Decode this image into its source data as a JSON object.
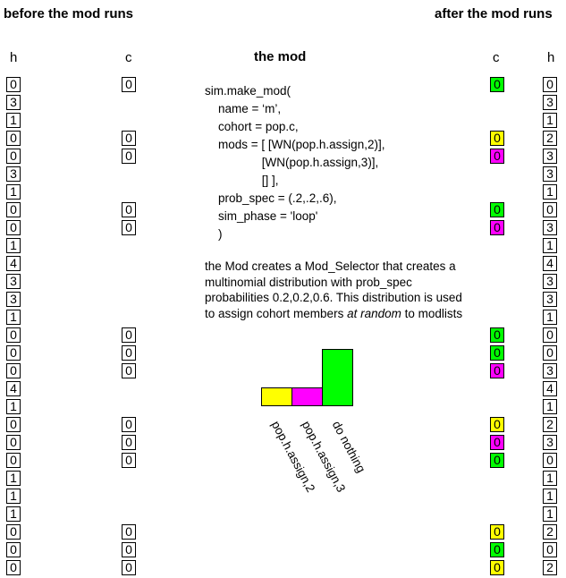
{
  "headers": {
    "before": "before the mod runs",
    "after": "after the mod runs"
  },
  "columns": {
    "h": "h",
    "c": "c",
    "mod_title": "the mod"
  },
  "before_h": [
    "0",
    "3",
    "1",
    "0",
    "0",
    "3",
    "1",
    "0",
    "0",
    "1",
    "4",
    "3",
    "3",
    "1",
    "0",
    "0",
    "0",
    "4",
    "1",
    "0",
    "0",
    "0",
    "1",
    "1",
    "1",
    "0",
    "0",
    "0"
  ],
  "before_c": [
    "0",
    "",
    "",
    "0",
    "0",
    "",
    "",
    "0",
    "0",
    "",
    "",
    "",
    "",
    "",
    "0",
    "0",
    "0",
    "",
    "",
    "0",
    "0",
    "0",
    "",
    "",
    "",
    "0",
    "0",
    "0"
  ],
  "after_c": [
    "0",
    "",
    "",
    "0",
    "0",
    "",
    "",
    "0",
    "0",
    "",
    "",
    "",
    "",
    "",
    "0",
    "0",
    "0",
    "",
    "",
    "0",
    "0",
    "0",
    "",
    "",
    "",
    "0",
    "0",
    "0"
  ],
  "after_c_colors": [
    "#00ff00",
    "",
    "",
    "#ffff00",
    "#ff00ff",
    "",
    "",
    "#00ff00",
    "#ff00ff",
    "",
    "",
    "",
    "",
    "",
    "#00ff00",
    "#00ff00",
    "#ff00ff",
    "",
    "",
    "#ffff00",
    "#ff00ff",
    "#00ff00",
    "",
    "",
    "",
    "#ffff00",
    "#00ff00",
    "#ffff00"
  ],
  "after_h": [
    "0",
    "3",
    "1",
    "2",
    "3",
    "3",
    "1",
    "0",
    "3",
    "1",
    "4",
    "3",
    "3",
    "1",
    "0",
    "0",
    "3",
    "4",
    "1",
    "2",
    "3",
    "0",
    "1",
    "1",
    "1",
    "2",
    "0",
    "2"
  ],
  "code_lines": [
    "sim.make_mod(",
    "    name = ‘m’,",
    "    cohort = pop.c,",
    "    mods = [ [WN(pop.h.assign,2)],",
    "                 [WN(pop.h.assign,3)],",
    "                 [] ],",
    "    prob_spec = (.2,.2,.6),",
    "    sim_phase = 'loop'",
    "    )"
  ],
  "description": {
    "before_italic": "the Mod creates a Mod_Selector that creates a multinomial distribution with prob_spec probabilities 0.2,0.2,0.6. This distribution is used to assign cohort members ",
    "italic": "at random",
    "after_italic": " to modlists"
  },
  "chart_data": {
    "type": "bar",
    "categories": [
      "pop.h.assign,2",
      "pop.h.assign,3",
      "do nothing"
    ],
    "values": [
      0.2,
      0.2,
      0.6
    ],
    "colors": [
      "#ffff00",
      "#ff00ff",
      "#00ff00"
    ],
    "ylim": [
      0,
      0.6
    ]
  }
}
